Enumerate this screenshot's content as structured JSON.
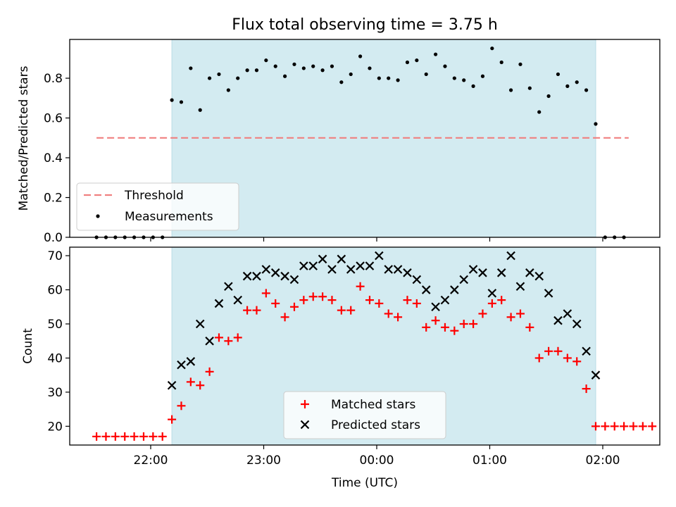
{
  "chart_data": [
    {
      "type": "scatter",
      "title": "Flux total observing time = 3.75 h",
      "xlabel": "",
      "ylabel": "Matched/Predicted stars",
      "ylim": [
        0,
        0.995
      ],
      "yticks": [
        "0.0",
        "0.2",
        "0.4",
        "0.6",
        "0.8"
      ],
      "ytick_values": [
        0,
        0.2,
        0.4,
        0.6,
        0.8
      ],
      "xtick_values_min": [
        -120,
        -60,
        0,
        60,
        120
      ],
      "observing_window_min": [
        -108.75,
        116.25
      ],
      "window_color": "#d3ebf1",
      "legend_position": "lower-left",
      "threshold": {
        "name": "Threshold",
        "value": 0.5,
        "x_range_min": [
          -148.75,
          133.75
        ],
        "color": "#f08080"
      },
      "series": [
        {
          "name": "Measurements",
          "color": "#000000",
          "x_min": [
            -148.75,
            -143.75,
            -138.75,
            -133.75,
            -128.75,
            -123.75,
            -118.75,
            -113.75,
            -108.75,
            -103.75,
            -98.75,
            -93.75,
            -88.75,
            -83.75,
            -78.75,
            -73.75,
            -68.75,
            -63.75,
            -58.75,
            -53.75,
            -48.75,
            -43.75,
            -38.75,
            -33.75,
            -28.75,
            -23.75,
            -18.75,
            -13.75,
            -8.75,
            -3.75,
            1.25,
            6.25,
            11.25,
            16.25,
            21.25,
            26.25,
            31.25,
            36.25,
            41.25,
            46.25,
            51.25,
            56.25,
            61.25,
            66.25,
            71.25,
            76.25,
            81.25,
            86.25,
            91.25,
            96.25,
            101.25,
            106.25,
            111.25,
            116.25,
            121.25,
            126.25,
            131.25
          ],
          "y": [
            0,
            0,
            0,
            0,
            0,
            0,
            0,
            0,
            0.69,
            0.68,
            0.85,
            0.64,
            0.8,
            0.82,
            0.74,
            0.8,
            0.84,
            0.84,
            0.89,
            0.86,
            0.81,
            0.87,
            0.85,
            0.86,
            0.84,
            0.86,
            0.78,
            0.82,
            0.91,
            0.85,
            0.8,
            0.8,
            0.79,
            0.88,
            0.89,
            0.82,
            0.92,
            0.86,
            0.8,
            0.79,
            0.76,
            0.81,
            0.95,
            0.88,
            0.74,
            0.87,
            0.75,
            0.63,
            0.71,
            0.82,
            0.76,
            0.78,
            0.74,
            0.57,
            0,
            0,
            0
          ]
        }
      ]
    },
    {
      "type": "scatter",
      "title": "",
      "xlabel": "Time (UTC)",
      "ylabel": "Count",
      "ylim": [
        14.5,
        72.5
      ],
      "yticks": [
        "20",
        "30",
        "40",
        "50",
        "60",
        "70"
      ],
      "ytick_values": [
        20,
        30,
        40,
        50,
        60,
        70
      ],
      "xticks": [
        "22:00",
        "23:00",
        "00:00",
        "01:00",
        "02:00"
      ],
      "xtick_values_min": [
        -120,
        -60,
        0,
        60,
        120
      ],
      "observing_window_min": [
        -108.75,
        116.25
      ],
      "window_color": "#d3ebf1",
      "legend_position": "lower-center",
      "series": [
        {
          "name": "Matched stars",
          "color": "#ff0000",
          "marker": "plus",
          "x_min": [
            -148.75,
            -143.75,
            -138.75,
            -133.75,
            -128.75,
            -123.75,
            -118.75,
            -113.75,
            -108.75,
            -103.75,
            -98.75,
            -93.75,
            -88.75,
            -83.75,
            -78.75,
            -73.75,
            -68.75,
            -63.75,
            -58.75,
            -53.75,
            -48.75,
            -43.75,
            -38.75,
            -33.75,
            -28.75,
            -23.75,
            -18.75,
            -13.75,
            -8.75,
            -3.75,
            1.25,
            6.25,
            11.25,
            16.25,
            21.25,
            26.25,
            31.25,
            36.25,
            41.25,
            46.25,
            51.25,
            56.25,
            61.25,
            66.25,
            71.25,
            76.25,
            81.25,
            86.25,
            91.25,
            96.25,
            101.25,
            106.25,
            111.25,
            116.25,
            121.25,
            126.25,
            131.25,
            136.25,
            141.25,
            146.25
          ],
          "y": [
            17,
            17,
            17,
            17,
            17,
            17,
            17,
            17,
            22,
            26,
            33,
            32,
            36,
            46,
            45,
            46,
            54,
            54,
            59,
            56,
            52,
            55,
            57,
            58,
            58,
            57,
            54,
            54,
            61,
            57,
            56,
            53,
            52,
            57,
            56,
            49,
            51,
            49,
            48,
            50,
            50,
            53,
            56,
            57,
            52,
            53,
            49,
            40,
            42,
            42,
            40,
            39,
            31,
            20,
            20,
            20,
            20,
            20,
            20,
            20
          ]
        },
        {
          "name": "Predicted stars",
          "color": "#000000",
          "marker": "x",
          "x_min": [
            -108.75,
            -103.75,
            -98.75,
            -93.75,
            -88.75,
            -83.75,
            -78.75,
            -73.75,
            -68.75,
            -63.75,
            -58.75,
            -53.75,
            -48.75,
            -43.75,
            -38.75,
            -33.75,
            -28.75,
            -23.75,
            -18.75,
            -13.75,
            -8.75,
            -3.75,
            1.25,
            6.25,
            11.25,
            16.25,
            21.25,
            26.25,
            31.25,
            36.25,
            41.25,
            46.25,
            51.25,
            56.25,
            61.25,
            66.25,
            71.25,
            76.25,
            81.25,
            86.25,
            91.25,
            96.25,
            101.25,
            106.25,
            111.25,
            116.25
          ],
          "y": [
            32,
            38,
            39,
            50,
            45,
            56,
            61,
            57,
            64,
            64,
            66,
            65,
            64,
            63,
            67,
            67,
            69,
            66,
            69,
            66,
            67,
            67,
            70,
            66,
            66,
            65,
            63,
            60,
            55,
            57,
            60,
            63,
            66,
            65,
            59,
            65,
            70,
            61,
            65,
            64,
            59,
            51,
            53,
            50,
            42,
            35
          ]
        }
      ]
    }
  ]
}
